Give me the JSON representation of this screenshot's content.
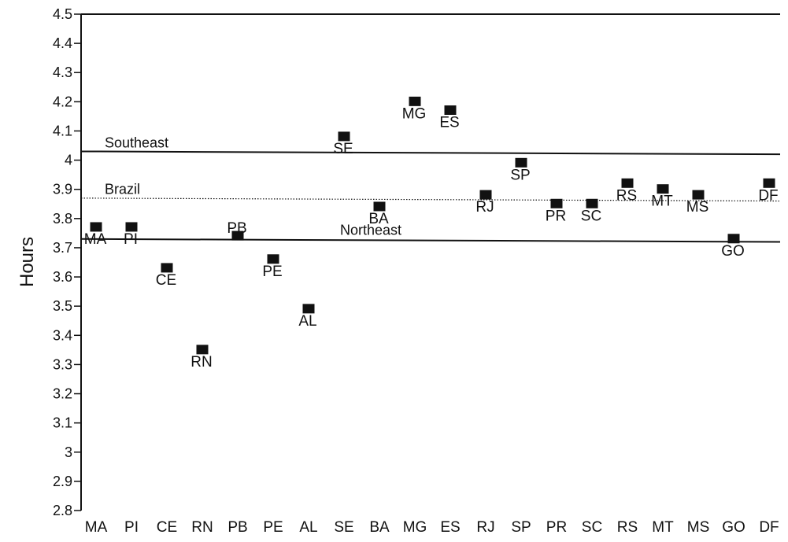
{
  "chart_data": {
    "type": "scatter",
    "title": "",
    "xlabel": "",
    "ylabel": "Hours",
    "ylim": [
      2.8,
      4.5
    ],
    "yticks": [
      2.8,
      2.9,
      3,
      3.1,
      3.2,
      3.3,
      3.4,
      3.5,
      3.6,
      3.7,
      3.8,
      3.9,
      4,
      4.1,
      4.2,
      4.3,
      4.4,
      4.5
    ],
    "ytick_labels": [
      "2.8",
      "2.9",
      "3",
      "3.1",
      "3.2",
      "3.3",
      "3.4",
      "3.5",
      "3.6",
      "3.7",
      "3.8",
      "3.9",
      "4",
      "4.1",
      "4.2",
      "4.3",
      "4.4",
      "4.5"
    ],
    "categories": [
      "MA",
      "PI",
      "CE",
      "RN",
      "PB",
      "PE",
      "AL",
      "SE",
      "BA",
      "MG",
      "ES",
      "RJ",
      "SP",
      "PR",
      "SC",
      "RS",
      "MT",
      "MS",
      "GO",
      "DF"
    ],
    "values": [
      3.77,
      3.77,
      3.63,
      3.35,
      3.74,
      3.66,
      3.49,
      4.08,
      3.84,
      4.2,
      4.17,
      3.88,
      3.99,
      3.85,
      3.85,
      3.92,
      3.9,
      3.88,
      3.73,
      3.92
    ],
    "point_label_position": [
      "below",
      "below",
      "below",
      "below",
      "above",
      "below",
      "below",
      "below",
      "below",
      "below",
      "below",
      "below",
      "below",
      "below",
      "below",
      "below",
      "below",
      "below",
      "below",
      "below"
    ],
    "reference_lines": [
      {
        "name": "Southeast",
        "y_start": 4.03,
        "y_end": 4.02,
        "style": "solid",
        "label_position": "left"
      },
      {
        "name": "Brazil",
        "y_start": 3.87,
        "y_end": 3.86,
        "style": "dotted",
        "label_position": "left"
      },
      {
        "name": "Northeast",
        "y_start": 3.73,
        "y_end": 3.72,
        "style": "solid",
        "label_position": "middle"
      }
    ],
    "grid": false,
    "marker": "square",
    "colors": {
      "marker": "#111111",
      "line": "#111111",
      "axis": "#111111"
    }
  }
}
